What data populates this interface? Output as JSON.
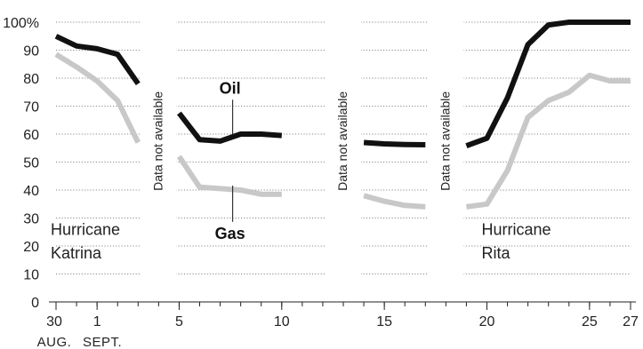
{
  "chart_data": {
    "type": "line",
    "ylim": [
      0,
      100
    ],
    "y_ticks": [
      {
        "value": 0,
        "label": "0"
      },
      {
        "value": 10,
        "label": "10"
      },
      {
        "value": 20,
        "label": "20"
      },
      {
        "value": 30,
        "label": "30"
      },
      {
        "value": 40,
        "label": "40"
      },
      {
        "value": 50,
        "label": "50"
      },
      {
        "value": 60,
        "label": "60"
      },
      {
        "value": 70,
        "label": "70"
      },
      {
        "value": 80,
        "label": "80"
      },
      {
        "value": 90,
        "label": "90"
      },
      {
        "value": 100,
        "label": "100%"
      }
    ],
    "x_ticks": [
      {
        "day": 0,
        "label": "30"
      },
      {
        "day": 2,
        "label": "1"
      },
      {
        "day": 6,
        "label": "5"
      },
      {
        "day": 11,
        "label": "10"
      },
      {
        "day": 16,
        "label": "15"
      },
      {
        "day": 21,
        "label": "20"
      },
      {
        "day": 26,
        "label": "25"
      },
      {
        "day": 28,
        "label": "27"
      }
    ],
    "month_labels": [
      {
        "day": 0,
        "label": "AUG."
      },
      {
        "day": 2,
        "label": "SEPT."
      }
    ],
    "gaps": [
      {
        "day": 5,
        "label": "Data not available"
      },
      {
        "day": 14,
        "label": "Data not available"
      },
      {
        "day": 19,
        "label": "Data not available"
      }
    ],
    "series": [
      {
        "name": "Oil",
        "color": "#111111",
        "segments": [
          [
            [
              0,
              95
            ],
            [
              1,
              91.5
            ],
            [
              2,
              90.5
            ],
            [
              3,
              88.5
            ],
            [
              4,
              78
            ]
          ],
          [
            [
              6,
              67.5
            ],
            [
              7,
              58
            ],
            [
              8,
              57.5
            ],
            [
              9,
              60
            ],
            [
              10,
              60
            ],
            [
              11,
              59.5
            ]
          ],
          [
            [
              15,
              57
            ],
            [
              16,
              56.5
            ],
            [
              17,
              56.3
            ],
            [
              18,
              56.2
            ]
          ],
          [
            [
              20,
              55.8
            ],
            [
              21,
              58.5
            ],
            [
              22,
              73
            ],
            [
              23,
              92
            ],
            [
              24,
              99
            ],
            [
              25,
              100
            ],
            [
              26,
              100
            ],
            [
              27,
              100
            ],
            [
              28,
              100
            ]
          ]
        ]
      },
      {
        "name": "Gas",
        "color": "#c8c8c8",
        "segments": [
          [
            [
              0,
              88.5
            ],
            [
              1,
              84
            ],
            [
              2,
              79
            ],
            [
              3,
              72
            ],
            [
              4,
              57
            ]
          ],
          [
            [
              6,
              52
            ],
            [
              7,
              41
            ],
            [
              8,
              40.5
            ],
            [
              9,
              40
            ],
            [
              10,
              38.5
            ],
            [
              11,
              38.5
            ]
          ],
          [
            [
              15,
              38
            ],
            [
              16,
              36
            ],
            [
              17,
              34.5
            ],
            [
              18,
              34
            ]
          ],
          [
            [
              20,
              34
            ],
            [
              21,
              35
            ],
            [
              22,
              47
            ],
            [
              23,
              66
            ],
            [
              24,
              72
            ],
            [
              25,
              75
            ],
            [
              26,
              81
            ],
            [
              27,
              79
            ],
            [
              28,
              79
            ]
          ]
        ]
      }
    ],
    "annotations": [
      {
        "text": "Hurricane",
        "day": 0,
        "value": 24
      },
      {
        "text": "Katrina",
        "day": 0,
        "value": 15.5
      },
      {
        "text": "Hurricane",
        "day": 21,
        "value": 24
      },
      {
        "text": "Rita",
        "day": 21,
        "value": 15.5
      }
    ],
    "series_callouts": [
      {
        "series": "Oil",
        "day": 9,
        "value": 74.5
      },
      {
        "series": "Gas",
        "day": 9,
        "value": 24.5
      }
    ]
  }
}
